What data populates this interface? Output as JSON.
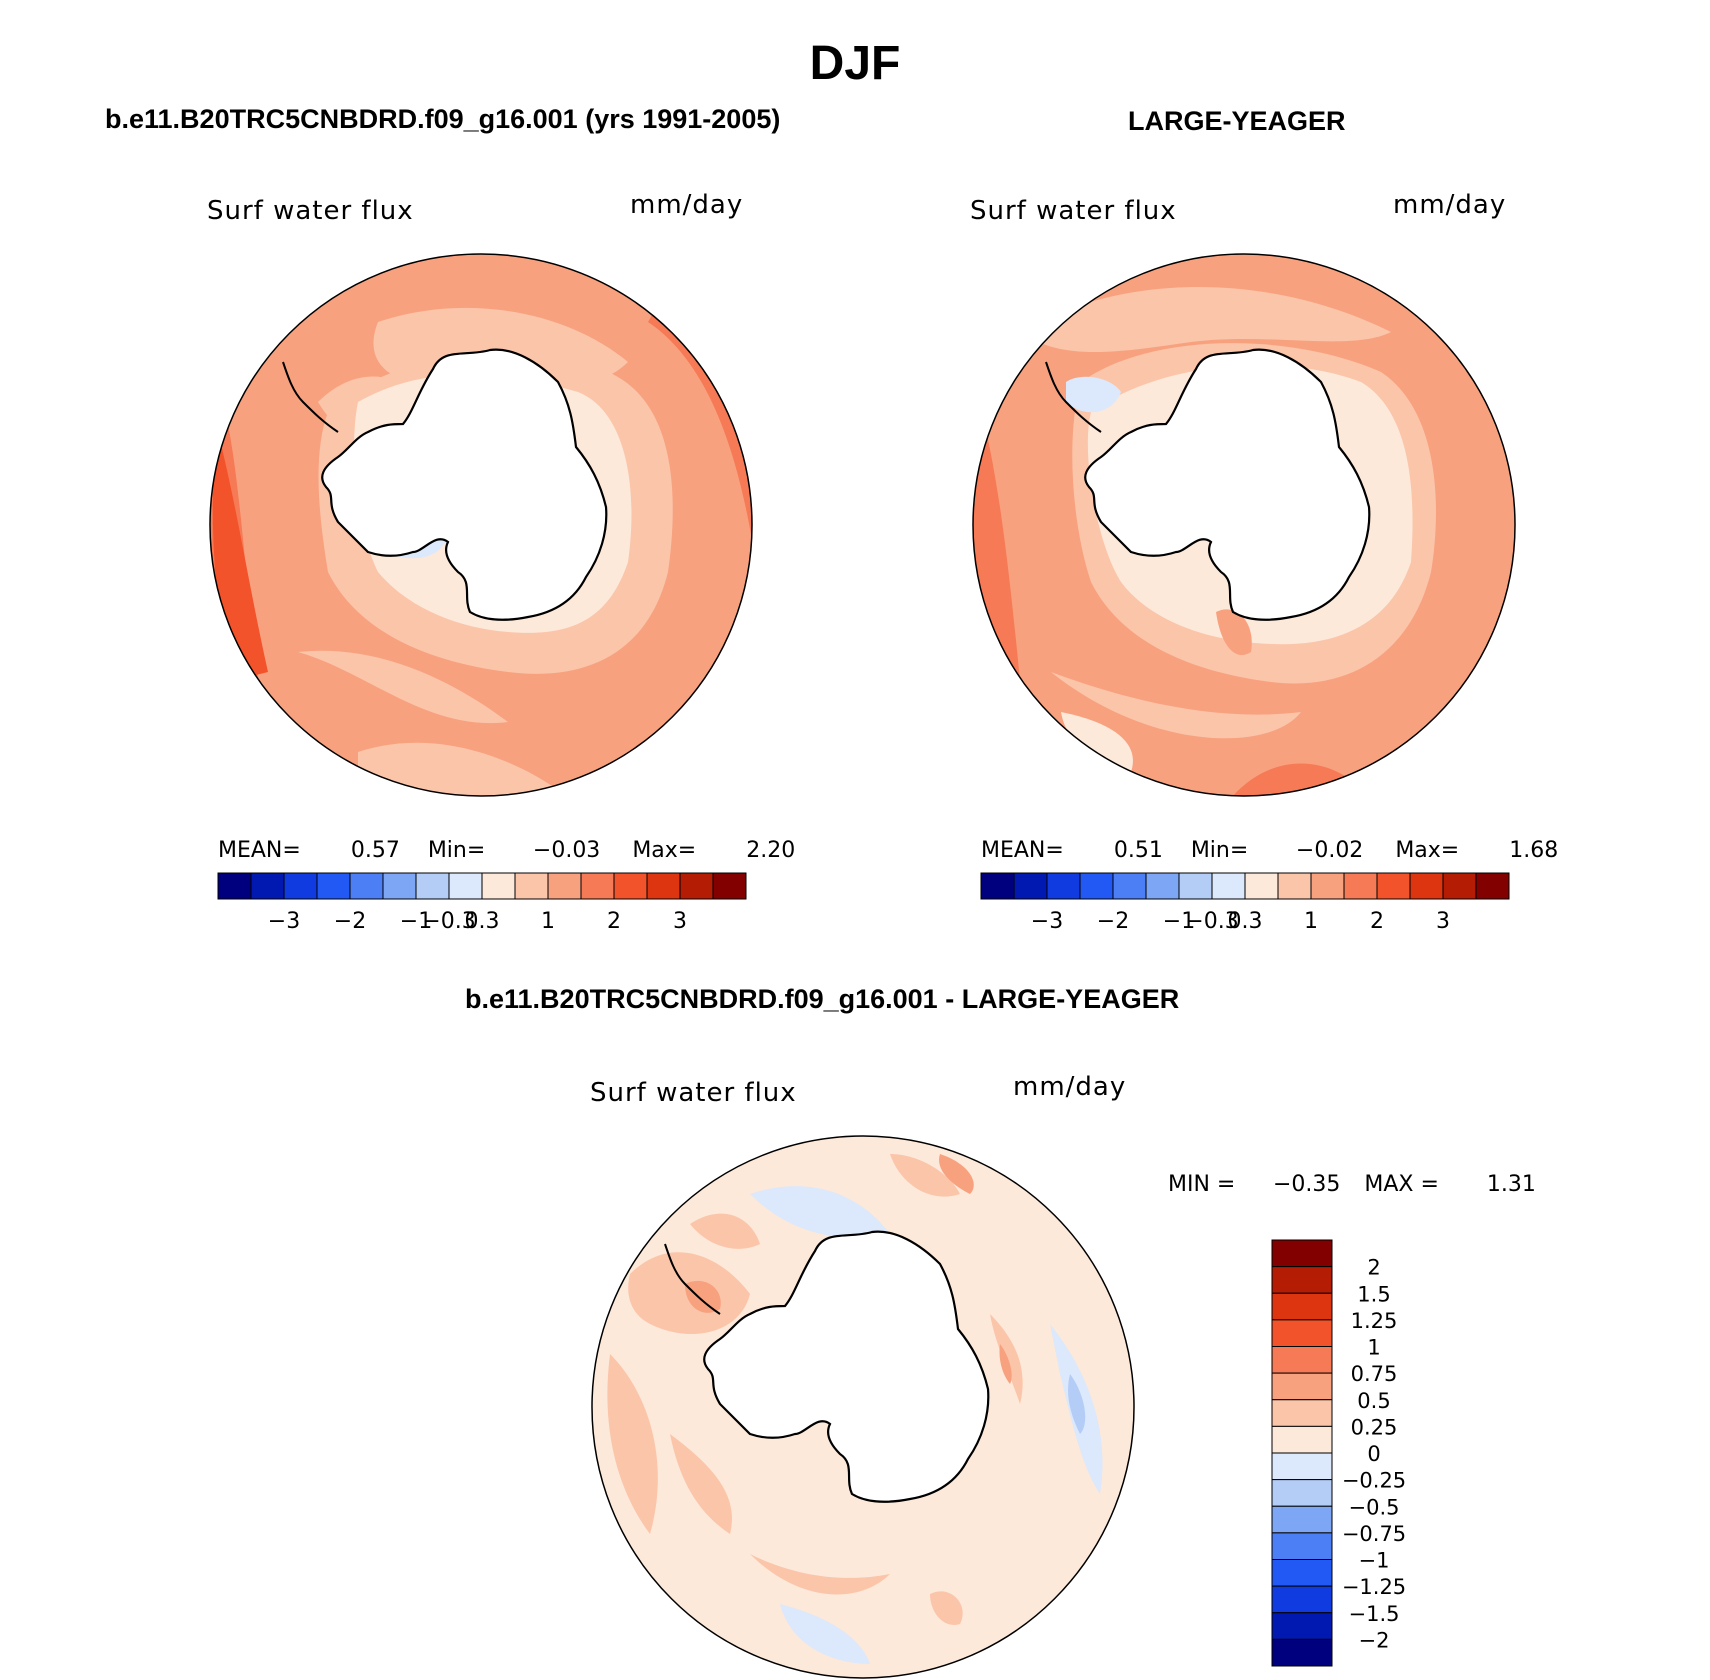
{
  "title": "DJF",
  "colors": {
    "scale": [
      "#00007f",
      "#0219b1",
      "#0f3be0",
      "#2259f5",
      "#4c7ef5",
      "#7da6f4",
      "#b4cdf7",
      "#dce8fb",
      "#fde9da",
      "#fbc5aa",
      "#f8a17f",
      "#f57a55",
      "#f3532a",
      "#dc3510",
      "#b41d04",
      "#830000"
    ]
  },
  "panels": [
    {
      "title": "b.e11.B20TRC5CNBDRD.f09_g16.001 (yrs 1991-2005)",
      "variable": "Surf  water  flux",
      "units": "mm/day",
      "stats": {
        "mean_label": "MEAN=",
        "mean": "0.57",
        "min_label": "Min=",
        "min": "−0.03",
        "max_label": "Max=",
        "max": "2.20"
      },
      "colorbar_ticks": [
        "−3",
        "−2",
        "−1",
        "−0.3",
        "0.3",
        "1",
        "2",
        "3"
      ]
    },
    {
      "title": "LARGE-YEAGER",
      "variable": "Surf  water  flux",
      "units": "mm/day",
      "stats": {
        "mean_label": "MEAN=",
        "mean": "0.51",
        "min_label": "Min=",
        "min": "−0.02",
        "max_label": "Max=",
        "max": "1.68"
      },
      "colorbar_ticks": [
        "−3",
        "−2",
        "−1",
        "−0.3",
        "0.3",
        "1",
        "2",
        "3"
      ]
    }
  ],
  "difference": {
    "title": "b.e11.B20TRC5CNBDRD.f09_g16.001 - LARGE-YEAGER",
    "variable": "Surf  water  flux",
    "units": "mm/day",
    "stats": {
      "min_label": "MIN =",
      "min": "−0.35",
      "max_label": "MAX =",
      "max": "1.31"
    },
    "colorbar_ticks": [
      "2",
      "1.5",
      "1.25",
      "1",
      "0.75",
      "0.5",
      "0.25",
      "0",
      "−0.25",
      "−0.5",
      "−0.75",
      "−1",
      "−1.25",
      "−1.5",
      "−2"
    ],
    "colorbar_colors": [
      "#830000",
      "#b41d04",
      "#dc3510",
      "#f3532a",
      "#f57a55",
      "#f8a17f",
      "#fbc5aa",
      "#fde9da",
      "#dce8fb",
      "#b4cdf7",
      "#7da6f4",
      "#4c7ef5",
      "#2259f5",
      "#0f3be0",
      "#0219b1",
      "#00007f"
    ]
  }
}
